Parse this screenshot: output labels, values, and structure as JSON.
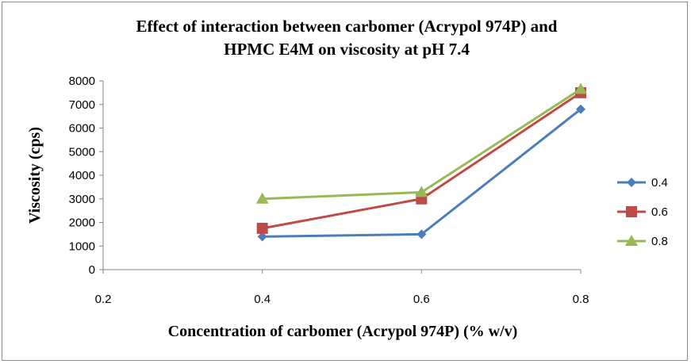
{
  "chart_data": {
    "type": "line",
    "title_lines": [
      "Effect of interaction between carbomer (Acrypol 974P) and",
      "HPMC E4M on viscosity at pH 7.4"
    ],
    "xlabel": "Concentration of carbomer (Acrypol 974P) (% w/v)",
    "ylabel": "Viscosity (cps)",
    "x_ticks": [
      "0.2",
      "0.4",
      "0.6",
      "0.8"
    ],
    "xlim": [
      0.2,
      0.8
    ],
    "y_ticks": [
      "0",
      "1000",
      "2000",
      "3000",
      "4000",
      "5000",
      "6000",
      "7000",
      "8000"
    ],
    "ylim": [
      0,
      8000
    ],
    "grid": false,
    "legend_position": "right",
    "series": [
      {
        "name": "0.4",
        "color": "#4a7ebb",
        "marker": "diamond",
        "x": [
          0.4,
          0.6,
          0.8
        ],
        "values": [
          1400,
          1500,
          6800
        ]
      },
      {
        "name": "0.6",
        "color": "#be4b48",
        "marker": "square",
        "x": [
          0.4,
          0.6,
          0.8
        ],
        "values": [
          1750,
          3000,
          7500
        ]
      },
      {
        "name": "0.8",
        "color": "#98b954",
        "marker": "triangle",
        "x": [
          0.4,
          0.6,
          0.8
        ],
        "values": [
          3000,
          3280,
          7650
        ]
      }
    ]
  }
}
